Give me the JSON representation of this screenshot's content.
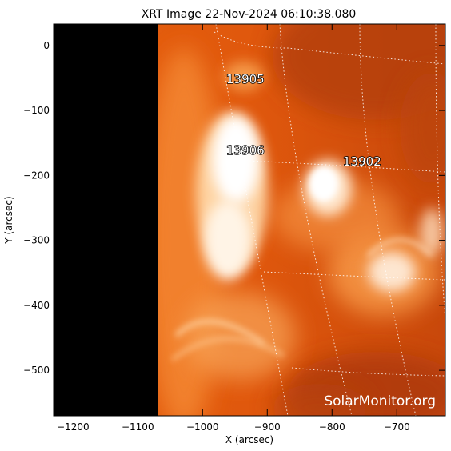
{
  "title": "XRT Image 22-Nov-2024 06:10:38.080",
  "x_axis": {
    "label": "X (arcsec)",
    "range": [
      -1230,
      -625
    ],
    "ticks": [
      -1200,
      -1100,
      -1000,
      -900,
      -800,
      -700
    ]
  },
  "y_axis": {
    "label": "Y (arcsec)",
    "range": [
      -570,
      33
    ],
    "ticks": [
      0,
      -100,
      -200,
      -300,
      -400,
      -500
    ]
  },
  "active_regions": [
    {
      "number": "13905",
      "x": -930,
      "y": -50
    },
    {
      "number": "13906",
      "x": -930,
      "y": -165
    },
    {
      "number": "13902",
      "x": -765,
      "y": -185
    }
  ],
  "off_disk_boundary_x": -1070,
  "colors": {
    "sky": "#000000",
    "disk_dark": "#b73d0a",
    "disk_mid": "#e8650e",
    "disk_bright": "#ffb060",
    "grid": "#ffffff"
  },
  "watermark": "SolarMonitor.org"
}
